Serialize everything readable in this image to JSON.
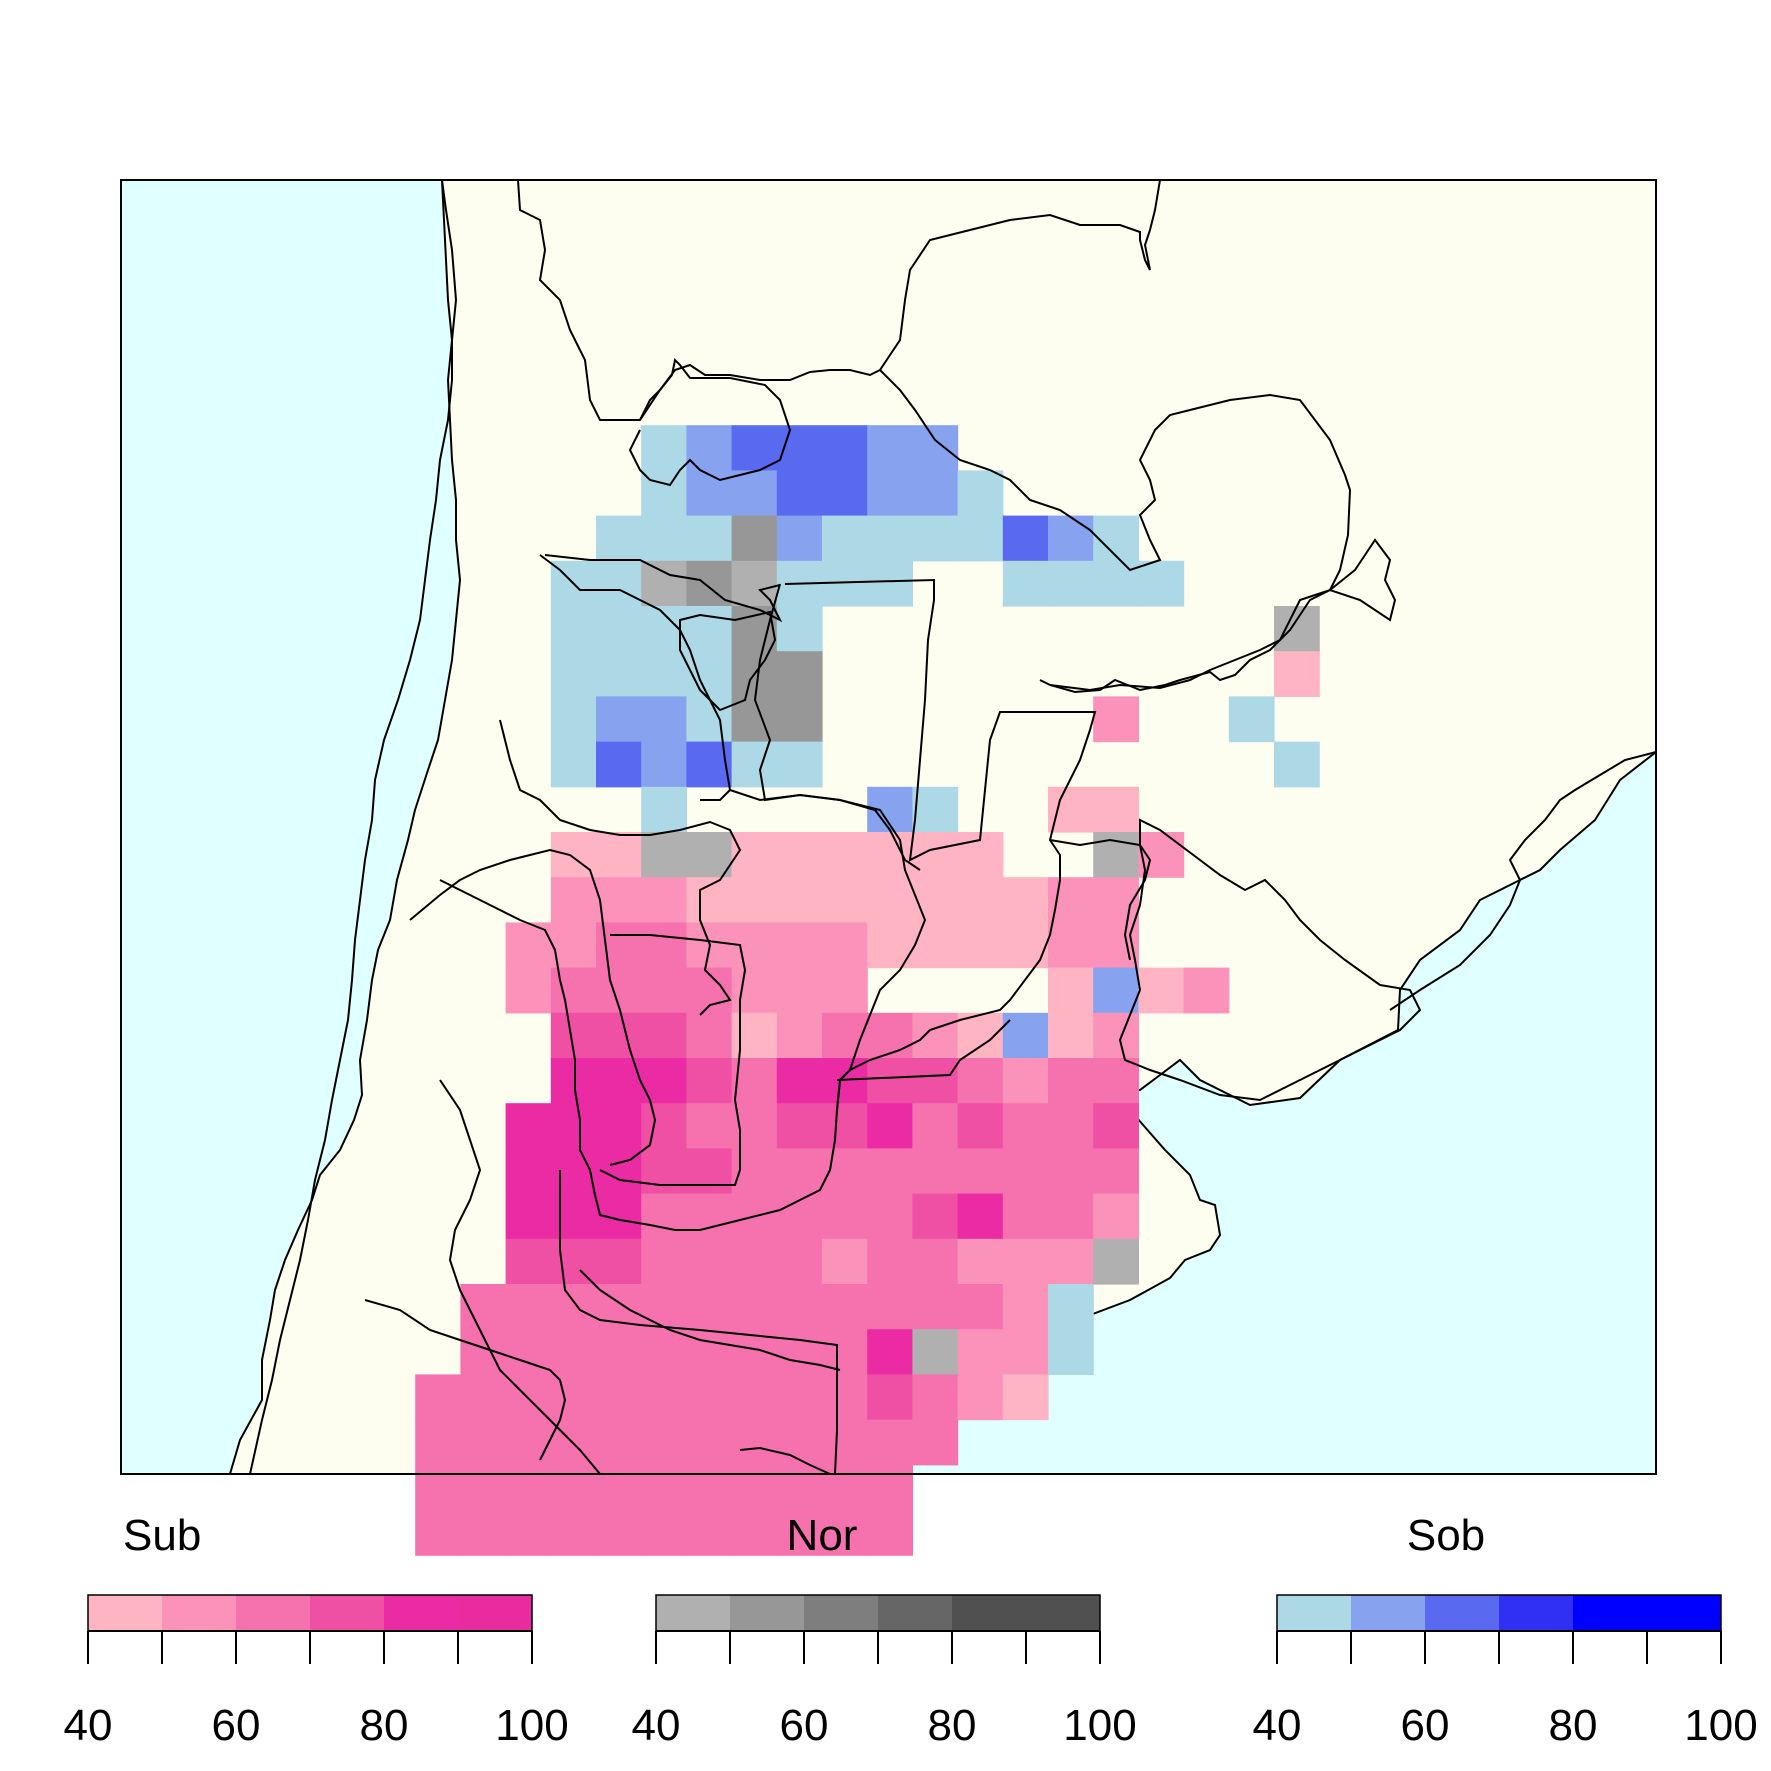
{
  "legends": [
    {
      "title": "Sub",
      "colors": [
        "#ffb4c4",
        "#fa92ba",
        "#f572ae",
        "#f050a4",
        "#eb2ba4",
        "#e82ca0"
      ],
      "ticks": [
        "40",
        "60",
        "80",
        "100"
      ]
    },
    {
      "title": "Nor",
      "colors": [
        "#b0b0b0",
        "#979797",
        "#7e7e7e",
        "#666666",
        "#505050",
        "#505050"
      ],
      "ticks": [
        "40",
        "60",
        "80",
        "100"
      ]
    },
    {
      "title": "Sob",
      "colors": [
        "#add8e6",
        "#87a2ee",
        "#5a6af0",
        "#3030f5",
        "#0000ff",
        "#0000ff"
      ],
      "ticks": [
        "40",
        "60",
        "80",
        "100"
      ]
    }
  ],
  "map_colors": {
    "ocean": "#e0ffff",
    "land": "#fefef0",
    "border": "#000000"
  }
}
